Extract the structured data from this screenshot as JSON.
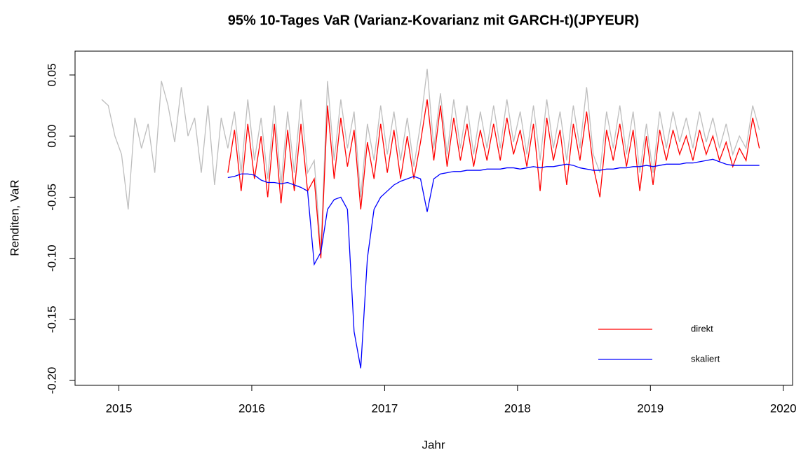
{
  "chart_data": {
    "type": "line",
    "title": "95% 10-Tages VaR (Varianz-Kovarianz mit GARCH-t)(JPYEUR)",
    "x_label": "Jahr",
    "y_label": "Renditen, VaR",
    "xlim": [
      2014.67,
      2020.07
    ],
    "ylim": [
      -0.204,
      0.0695
    ],
    "xticks": [
      2015,
      2016,
      2017,
      2018,
      2019,
      2020
    ],
    "yticks": [
      {
        "value": -0.2,
        "label": "-0.20"
      },
      {
        "value": -0.15,
        "label": "-0.15"
      },
      {
        "value": -0.1,
        "label": "-0.10"
      },
      {
        "value": -0.05,
        "label": "-0.05"
      },
      {
        "value": 0,
        "label": "0.00"
      },
      {
        "value": 0.05,
        "label": "0.05"
      }
    ],
    "legend": "bottom-right",
    "x": [
      2014.87,
      2014.92,
      2014.97,
      2015.02,
      2015.07,
      2015.12,
      2015.17,
      2015.22,
      2015.27,
      2015.32,
      2015.37,
      2015.42,
      2015.47,
      2015.52,
      2015.57,
      2015.62,
      2015.67,
      2015.72,
      2015.77,
      2015.82,
      2015.87,
      2015.92,
      2015.97,
      2016.02,
      2016.07,
      2016.12,
      2016.17,
      2016.22,
      2016.27,
      2016.32,
      2016.37,
      2016.42,
      2016.47,
      2016.52,
      2016.57,
      2016.62,
      2016.67,
      2016.72,
      2016.77,
      2016.82,
      2016.87,
      2016.92,
      2016.97,
      2017.02,
      2017.07,
      2017.12,
      2017.17,
      2017.22,
      2017.27,
      2017.32,
      2017.37,
      2017.42,
      2017.47,
      2017.52,
      2017.57,
      2017.62,
      2017.67,
      2017.72,
      2017.77,
      2017.82,
      2017.87,
      2017.92,
      2017.97,
      2018.02,
      2018.07,
      2018.12,
      2018.17,
      2018.22,
      2018.27,
      2018.32,
      2018.37,
      2018.42,
      2018.47,
      2018.52,
      2018.57,
      2018.62,
      2018.67,
      2018.72,
      2018.77,
      2018.82,
      2018.87,
      2018.92,
      2018.97,
      2019.02,
      2019.07,
      2019.12,
      2019.17,
      2019.22,
      2019.27,
      2019.32,
      2019.37,
      2019.42,
      2019.47,
      2019.52,
      2019.57,
      2019.62,
      2019.67,
      2019.72,
      2019.77,
      2019.82
    ],
    "series": [
      {
        "color": "#bebebe",
        "values": [
          0.03,
          0.025,
          0.0,
          -0.015,
          -0.06,
          0.015,
          -0.01,
          0.01,
          -0.03,
          0.045,
          0.025,
          -0.005,
          0.04,
          0.0,
          0.015,
          -0.03,
          0.025,
          -0.04,
          0.015,
          -0.01,
          0.02,
          -0.03,
          0.03,
          -0.02,
          0.015,
          -0.035,
          0.025,
          -0.04,
          0.02,
          -0.03,
          0.03,
          -0.03,
          -0.02,
          -0.095,
          0.045,
          -0.02,
          0.03,
          -0.01,
          0.02,
          -0.05,
          0.01,
          -0.02,
          0.025,
          -0.015,
          0.02,
          -0.02,
          0.015,
          -0.025,
          0.01,
          0.055,
          -0.01,
          0.035,
          -0.015,
          0.03,
          -0.01,
          0.025,
          -0.015,
          0.02,
          -0.01,
          0.025,
          -0.01,
          0.03,
          -0.005,
          0.02,
          -0.015,
          0.025,
          -0.02,
          0.03,
          -0.01,
          0.02,
          -0.02,
          0.025,
          -0.01,
          0.04,
          -0.015,
          -0.03,
          0.02,
          -0.01,
          0.025,
          -0.015,
          0.02,
          -0.03,
          0.01,
          -0.03,
          0.02,
          -0.01,
          0.02,
          -0.005,
          0.015,
          -0.01,
          0.02,
          -0.005,
          0.015,
          -0.01,
          0.01,
          -0.015,
          0.0,
          -0.01,
          0.025,
          0.005
        ]
      },
      {
        "name": "direkt",
        "color": "#ff0000",
        "values": [
          null,
          null,
          null,
          null,
          null,
          null,
          null,
          null,
          null,
          null,
          null,
          null,
          null,
          null,
          null,
          null,
          null,
          null,
          null,
          -0.03,
          0.005,
          -0.045,
          0.01,
          -0.035,
          0.0,
          -0.05,
          0.01,
          -0.055,
          0.005,
          -0.045,
          0.01,
          -0.045,
          -0.035,
          -0.1,
          0.025,
          -0.035,
          0.015,
          -0.025,
          0.005,
          -0.06,
          -0.005,
          -0.035,
          0.01,
          -0.03,
          0.005,
          -0.035,
          0.0,
          -0.035,
          -0.005,
          0.03,
          -0.02,
          0.025,
          -0.025,
          0.015,
          -0.02,
          0.01,
          -0.025,
          0.005,
          -0.02,
          0.01,
          -0.02,
          0.015,
          -0.015,
          0.005,
          -0.025,
          0.01,
          -0.045,
          0.015,
          -0.02,
          0.005,
          -0.04,
          0.01,
          -0.02,
          0.02,
          -0.025,
          -0.05,
          0.005,
          -0.02,
          0.01,
          -0.025,
          0.005,
          -0.045,
          0.0,
          -0.04,
          0.005,
          -0.02,
          0.005,
          -0.015,
          0.0,
          -0.02,
          0.005,
          -0.015,
          0.0,
          -0.02,
          -0.005,
          -0.025,
          -0.01,
          -0.02,
          0.015,
          -0.01
        ]
      },
      {
        "name": "skaliert",
        "color": "#0000ff",
        "values": [
          null,
          null,
          null,
          null,
          null,
          null,
          null,
          null,
          null,
          null,
          null,
          null,
          null,
          null,
          null,
          null,
          null,
          null,
          null,
          -0.034,
          -0.033,
          -0.031,
          -0.031,
          -0.032,
          -0.036,
          -0.038,
          -0.038,
          -0.039,
          -0.038,
          -0.04,
          -0.042,
          -0.045,
          -0.105,
          -0.095,
          -0.06,
          -0.052,
          -0.05,
          -0.06,
          -0.16,
          -0.19,
          -0.1,
          -0.06,
          -0.05,
          -0.045,
          -0.04,
          -0.037,
          -0.035,
          -0.033,
          -0.035,
          -0.062,
          -0.035,
          -0.031,
          -0.03,
          -0.029,
          -0.029,
          -0.028,
          -0.028,
          -0.028,
          -0.027,
          -0.027,
          -0.027,
          -0.026,
          -0.026,
          -0.027,
          -0.026,
          -0.025,
          -0.026,
          -0.025,
          -0.025,
          -0.024,
          -0.023,
          -0.024,
          -0.026,
          -0.027,
          -0.028,
          -0.028,
          -0.027,
          -0.027,
          -0.026,
          -0.026,
          -0.025,
          -0.025,
          -0.024,
          -0.025,
          -0.024,
          -0.023,
          -0.023,
          -0.023,
          -0.022,
          -0.022,
          -0.021,
          -0.02,
          -0.019,
          -0.021,
          -0.023,
          -0.024,
          -0.024,
          -0.024,
          -0.024,
          -0.024
        ]
      }
    ]
  }
}
